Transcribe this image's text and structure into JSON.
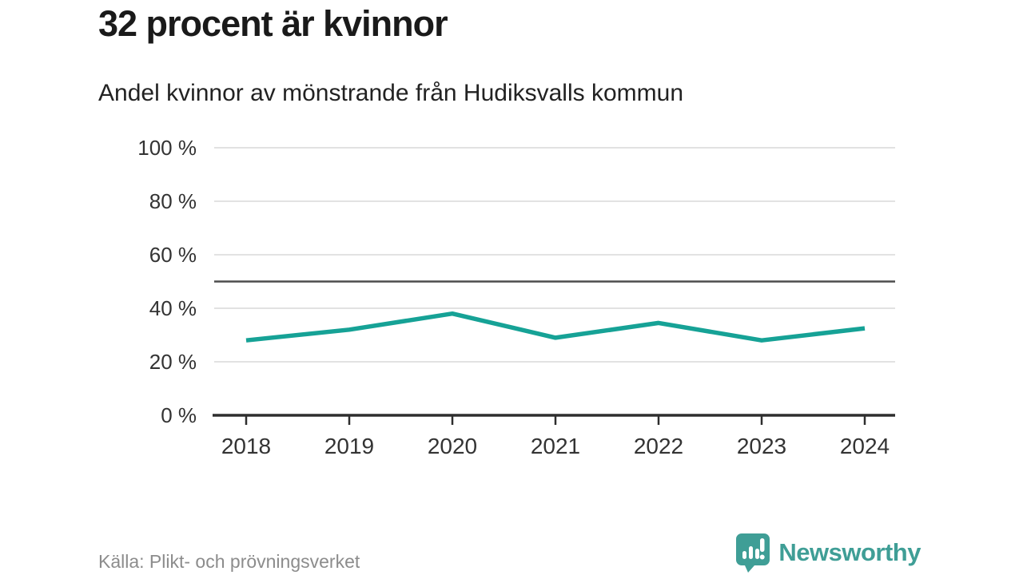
{
  "header": {
    "title": "32 procent är kvinnor",
    "subtitle": "Andel kvinnor av mönstrande från Hudiksvalls kommun"
  },
  "chart_data": {
    "type": "line",
    "title": "32 procent är kvinnor",
    "subtitle": "Andel kvinnor av mönstrande från Hudiksvalls kommun",
    "x": [
      2018,
      2019,
      2020,
      2021,
      2022,
      2023,
      2024
    ],
    "series": [
      {
        "name": "Andel kvinnor av mönstrande, Hudiksvalls kommun",
        "values": [
          28,
          32,
          38,
          29,
          34.5,
          28,
          32.5
        ]
      }
    ],
    "unit": "%",
    "xlabel": "",
    "ylabel": "",
    "ylim": [
      0,
      100
    ],
    "yticks": [
      0,
      20,
      40,
      60,
      80,
      100
    ],
    "ytick_suffix": " %",
    "reference_line_y": 50,
    "grid": true,
    "legend": "none"
  },
  "colors": {
    "accent_line": "#16a296",
    "brand_teal": "#3f9e96",
    "axis": "#2e2e2e",
    "grid": "#e2e2e2",
    "reference_line": "#4d4d4d",
    "tick_text": "#333333",
    "muted_text": "#8c8c8c",
    "title_text": "#1a1a1a"
  },
  "footer": {
    "source": "Källa: Plikt- och prövningsverket",
    "brand": "Newsworthy"
  }
}
